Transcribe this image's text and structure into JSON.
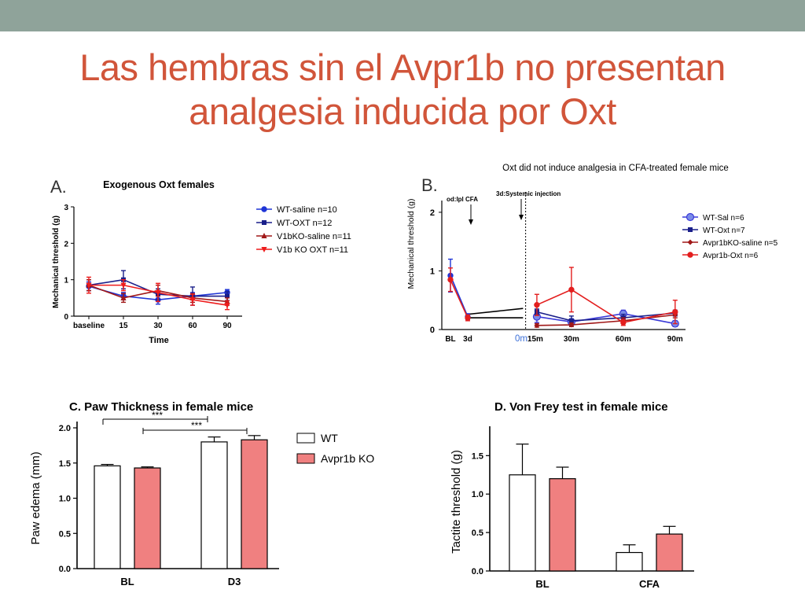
{
  "slide": {
    "title_line1": "Las hembras sin el Avpr1b no presentan",
    "title_line2": "analgesia inducida por Oxt",
    "accent_color": "#d1553a",
    "topbar_color": "#8fa39a"
  },
  "chart_data": [
    {
      "panel": "A.",
      "type": "line",
      "title": "Exogenous Oxt females",
      "xlabel": "Time",
      "ylabel": "Mechanical threshold (g)",
      "categories": [
        "baseline",
        "15",
        "30",
        "60",
        "90"
      ],
      "ylim": [
        0,
        3
      ],
      "yticks": [
        0,
        1,
        2,
        3
      ],
      "legend_position": "right",
      "series": [
        {
          "name": "WT-saline n=10",
          "color": "#1f35d6",
          "marker": "circle",
          "values": [
            0.82,
            0.55,
            0.45,
            0.55,
            0.65
          ],
          "err": [
            0.12,
            0.1,
            0.12,
            0.1,
            0.08
          ]
        },
        {
          "name": "WT-OXT n=12",
          "color": "#1a1f8a",
          "marker": "square",
          "values": [
            0.85,
            1.0,
            0.6,
            0.55,
            0.55
          ],
          "err": [
            0.15,
            0.25,
            0.15,
            0.25,
            0.12
          ]
        },
        {
          "name": "V1bKO-saline n=11",
          "color": "#a01818",
          "marker": "triangle",
          "values": [
            0.85,
            0.5,
            0.7,
            0.5,
            0.4
          ],
          "err": [
            0.15,
            0.12,
            0.15,
            0.12,
            0.1
          ]
        },
        {
          "name": "V1b KO OXT n=11",
          "color": "#ee1c1c",
          "marker": "tri-down",
          "values": [
            0.85,
            0.85,
            0.65,
            0.45,
            0.3
          ],
          "err": [
            0.22,
            0.15,
            0.25,
            0.15,
            0.12
          ]
        }
      ]
    },
    {
      "panel": "B.",
      "type": "line",
      "title": "Oxt did not induce analgesia in  CFA-treated female mice",
      "ylabel": "Mechanical threshold (g)",
      "ylim": [
        0,
        2.2
      ],
      "yticks": [
        0,
        1,
        2
      ],
      "annotations": [
        "od:Ipl CFA",
        "3d:Systemic injection"
      ],
      "tick_labels": [
        {
          "label": "BL",
          "color": "#000000"
        },
        {
          "label": "3d",
          "color": "#000000"
        },
        {
          "label": "0m",
          "color": "#3b6fd8"
        },
        {
          "label": "15m",
          "color": "#000000"
        },
        {
          "label": "30m",
          "color": "#000000"
        },
        {
          "label": "60m",
          "color": "#000000"
        },
        {
          "label": "90m",
          "color": "#000000"
        }
      ],
      "x_positions": [
        0,
        1,
        4,
        5,
        7,
        10,
        13
      ],
      "legend_position": "right",
      "pre_series": [
        {
          "name": "pre-CFA blue",
          "color": "#1f35d6",
          "x": [
            0,
            1
          ],
          "values": [
            0.92,
            0.22
          ],
          "err": [
            0.28,
            0.05
          ]
        },
        {
          "name": "pre-CFA red",
          "color": "#e31e1e",
          "x": [
            0,
            1
          ],
          "values": [
            0.85,
            0.2
          ],
          "err": [
            0.2,
            0.05
          ]
        }
      ],
      "series": [
        {
          "name": "WT-Sal n=6",
          "color": "#3a3ad8",
          "fill": "#7a8ce8",
          "marker": "circle-big",
          "x": [
            5,
            7,
            10,
            13
          ],
          "values": [
            0.22,
            0.13,
            0.27,
            0.1
          ],
          "err": [
            0.1,
            0.05,
            0.06,
            0.05
          ]
        },
        {
          "name": "WT-Oxt n=7",
          "color": "#1a1f8a",
          "marker": "square",
          "x": [
            5,
            7,
            10,
            13
          ],
          "values": [
            0.3,
            0.15,
            0.2,
            0.28
          ],
          "err": [
            0.05,
            0.08,
            0.06,
            0.05
          ]
        },
        {
          "name": "Avpr1bKO-saline n=5",
          "color": "#a01818",
          "marker": "diamond",
          "x": [
            5,
            7,
            10,
            13
          ],
          "values": [
            0.07,
            0.08,
            0.15,
            0.25
          ],
          "err": [
            0.03,
            0.03,
            0.05,
            0.05
          ]
        },
        {
          "name": "Avpr1b-Oxt n=6",
          "color": "#e31e1e",
          "marker": "circle",
          "x": [
            5,
            7,
            10,
            13
          ],
          "values": [
            0.42,
            0.68,
            0.12,
            0.3
          ],
          "err": [
            0.18,
            0.38,
            0.05,
            0.2
          ]
        }
      ]
    },
    {
      "panel": "C.",
      "type": "bar",
      "title": "C. Paw Thickness in female mice",
      "ylabel": "Paw edema (mm)",
      "categories": [
        "BL",
        "D3"
      ],
      "ylim": [
        0,
        2.0
      ],
      "yticks": [
        "0.0",
        "0.5",
        "1.0",
        "1.5",
        "2.0"
      ],
      "legend_position": "right",
      "significance": [
        "***",
        "***"
      ],
      "series": [
        {
          "name": "WT",
          "color": "#ffffff",
          "values": [
            1.46,
            1.8
          ],
          "err": [
            0.02,
            0.07
          ]
        },
        {
          "name": "Avpr1b KO",
          "color": "#f08080",
          "values": [
            1.43,
            1.83
          ],
          "err": [
            0.015,
            0.06
          ]
        }
      ]
    },
    {
      "panel": "D.",
      "type": "bar",
      "title": "D. Von Frey test in female mice",
      "ylabel": "Tactite threshold (g)",
      "categories": [
        "BL",
        "CFA"
      ],
      "ylim": [
        0,
        1.8
      ],
      "yticks": [
        "0.0",
        "0.5",
        "1.0",
        "1.5"
      ],
      "series": [
        {
          "name": "WT",
          "color": "#ffffff",
          "values": [
            1.25,
            0.24
          ],
          "err": [
            0.4,
            0.1
          ]
        },
        {
          "name": "Avpr1b KO",
          "color": "#f08080",
          "values": [
            1.2,
            0.48
          ],
          "err": [
            0.15,
            0.1
          ]
        }
      ]
    }
  ]
}
